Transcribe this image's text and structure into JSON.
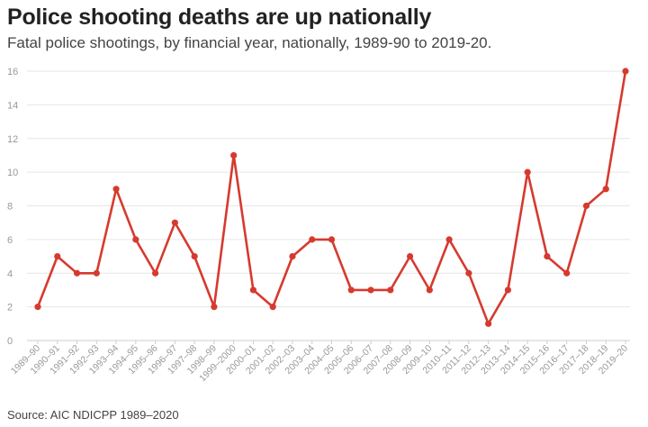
{
  "title": "Police shooting deaths are up nationally",
  "subtitle": "Fatal police shootings, by financial year, nationally, 1989-90 to 2019-20.",
  "source": "Source: AIC NDICPP 1989–2020",
  "colors": {
    "line": "#d63a2f",
    "grid": "#e6e6e6",
    "axis_text": "#999999"
  },
  "chart_data": {
    "type": "line",
    "title": "Police shooting deaths are up nationally",
    "subtitle": "Fatal police shootings, by financial year, nationally, 1989-90 to 2019-20.",
    "xlabel": "",
    "ylabel": "",
    "ylim": [
      0,
      16
    ],
    "yticks": [
      0,
      2,
      4,
      6,
      8,
      10,
      12,
      14,
      16
    ],
    "grid": true,
    "categories": [
      "1989–90",
      "1990–91",
      "1991–92",
      "1992–93",
      "1993–94",
      "1994–95",
      "1995–96",
      "1996–97",
      "1997–98",
      "1998–99",
      "1999–2000",
      "2000–01",
      "2001–02",
      "2002–03",
      "2003–04",
      "2004–05",
      "2005–06",
      "2006–07",
      "2007–08",
      "2008–09",
      "2009–10",
      "2010–11",
      "2011–12",
      "2012–13",
      "2013–14",
      "2014–15",
      "2015–16",
      "2016–17",
      "2017–18",
      "2018–19",
      "2019–20"
    ],
    "series": [
      {
        "values": [
          2,
          5,
          4,
          4,
          9,
          6,
          4,
          7,
          5,
          2,
          11,
          3,
          2,
          5,
          6,
          6,
          3,
          3,
          3,
          5,
          3,
          6,
          4,
          1,
          3,
          10,
          5,
          4,
          8,
          9,
          16
        ]
      }
    ]
  }
}
